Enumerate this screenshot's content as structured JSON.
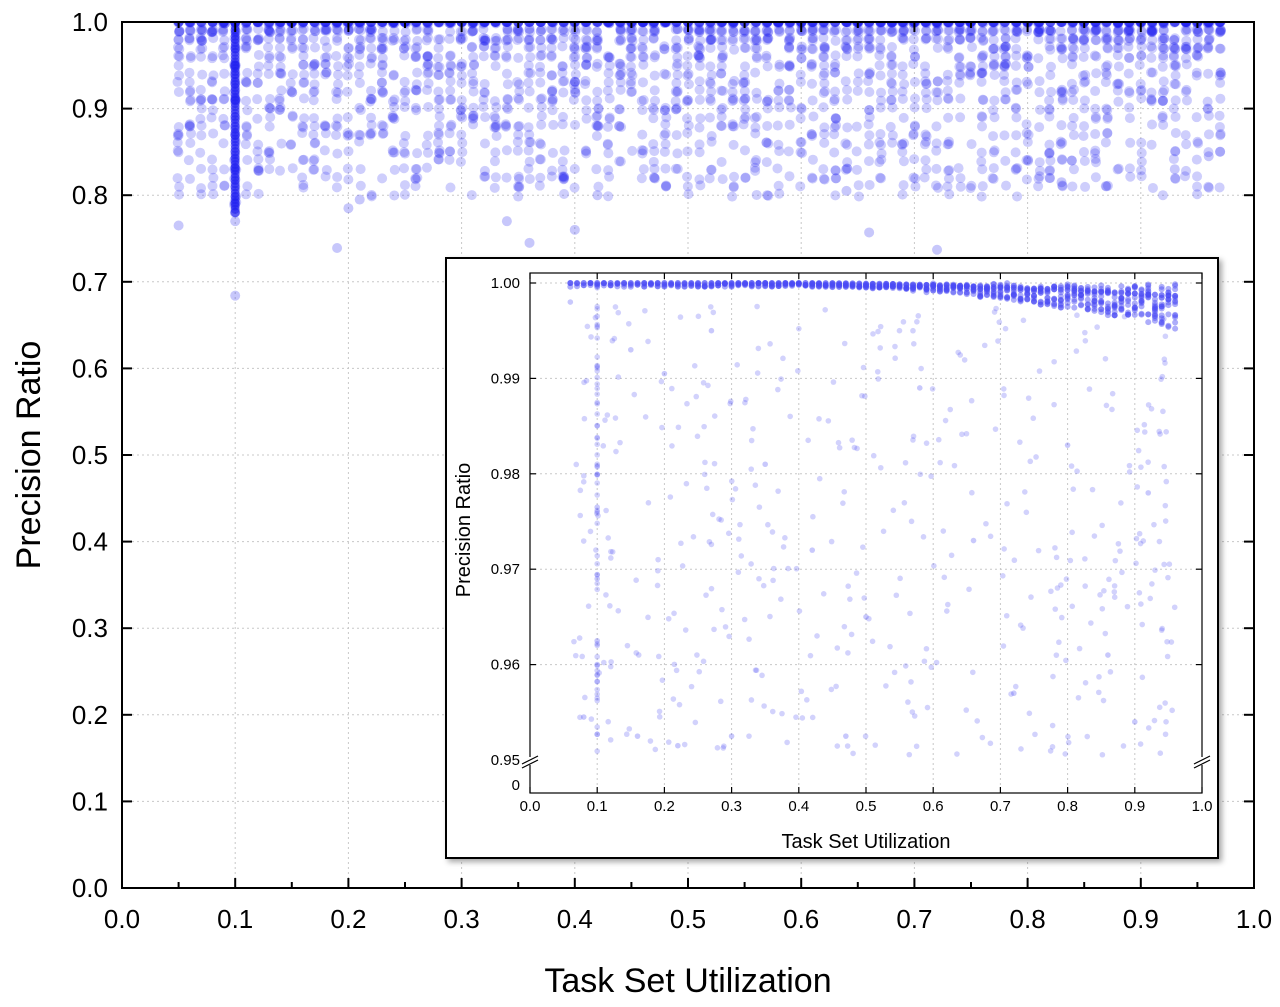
{
  "chart_data": [
    {
      "type": "scatter",
      "xlabel": "Task Set Utilization",
      "ylabel": "Precision Ratio",
      "xlim": [
        0.0,
        1.0
      ],
      "ylim": [
        0.0,
        1.0
      ],
      "x_ticks": [
        "0.0",
        "0.1",
        "0.2",
        "0.3",
        "0.4",
        "0.5",
        "0.6",
        "0.7",
        "0.8",
        "0.9",
        "1.0"
      ],
      "y_ticks": [
        "0.0",
        "0.1",
        "0.2",
        "0.3",
        "0.4",
        "0.5",
        "0.6",
        "0.7",
        "0.8",
        "0.9",
        "1.0"
      ],
      "grid": true,
      "marker_color": "#1f1ff0",
      "series": [
        {
          "points": [
            [
              0.05,
              0.765
            ],
            [
              0.1,
              0.684
            ],
            [
              0.19,
              0.739
            ],
            [
              0.2,
              0.785
            ],
            [
              0.21,
              0.795
            ],
            [
              0.34,
              0.77
            ],
            [
              0.36,
              0.745
            ],
            [
              0.4,
              0.76
            ],
            [
              0.42,
              0.8
            ],
            [
              0.57,
              0.8
            ],
            [
              0.64,
              0.805
            ],
            [
              0.66,
              0.757
            ],
            [
              0.72,
              0.737
            ],
            [
              0.83,
              0.815
            ],
            [
              0.93,
              0.83
            ],
            [
              0.96,
              0.845
            ],
            [
              0.1,
              0.77
            ],
            [
              0.1,
              0.78
            ],
            [
              0.1,
              0.79
            ],
            [
              0.1,
              0.81
            ],
            [
              0.1,
              0.83
            ],
            [
              0.1,
              0.85
            ],
            [
              0.1,
              0.87
            ],
            [
              0.1,
              0.89
            ],
            [
              0.1,
              0.91
            ],
            [
              0.1,
              0.93
            ],
            [
              0.1,
              0.95
            ],
            [
              0.1,
              0.97
            ],
            [
              0.1,
              0.99
            ],
            [
              0.1,
              1.0
            ]
          ]
        }
      ],
      "top_band": {
        "y": 1.0,
        "x_range": [
          0.05,
          0.98
        ],
        "description_density": "dense"
      },
      "scatter_region": {
        "x_range": [
          0.05,
          0.98
        ],
        "y_range": [
          0.8,
          1.0
        ],
        "density": "high near 1.0"
      }
    },
    {
      "type": "scatter",
      "xlabel": "Task Set Utilization",
      "ylabel": "Precision Ratio",
      "xlim": [
        0.0,
        1.0
      ],
      "ylim": [
        0.95,
        1.0
      ],
      "axis_break": true,
      "x_ticks": [
        "0.0",
        "0.1",
        "0.2",
        "0.3",
        "0.4",
        "0.5",
        "0.6",
        "0.7",
        "0.8",
        "0.9",
        "1.0"
      ],
      "y_ticks": [
        "0.95",
        "0.96",
        "0.97",
        "0.98",
        "0.99",
        "1.00"
      ],
      "y_break_label": "0",
      "grid": true,
      "marker_color": "#4a4af5",
      "series": [
        {
          "points": [
            [
              0.06,
              0.998
            ],
            [
              0.1,
              0.9995
            ],
            [
              0.15,
              0.993
            ],
            [
              0.2,
              0.9905
            ],
            [
              0.27,
              0.995
            ],
            [
              0.35,
              0.981
            ],
            [
              0.42,
              0.972
            ],
            [
              0.5,
              0.965
            ],
            [
              0.58,
              0.989
            ],
            [
              0.66,
              0.973
            ],
            [
              0.72,
              0.957
            ],
            [
              0.8,
              0.983
            ],
            [
              0.86,
              0.961
            ],
            [
              0.9,
              0.954
            ],
            [
              0.92,
              0.978
            ],
            [
              0.94,
              0.9975
            ],
            [
              0.1,
              0.9765
            ],
            [
              0.1,
              0.969
            ],
            [
              0.1,
              0.9625
            ],
            [
              0.1,
              0.96
            ],
            [
              0.08,
              0.9545
            ],
            [
              0.16,
              0.9525
            ],
            [
              0.22,
              0.9515
            ],
            [
              0.3,
              0.9525
            ],
            [
              0.47,
              0.9525
            ]
          ]
        }
      ],
      "top_band": {
        "y_start": 1.0,
        "y_end": 0.996,
        "x_range": [
          0.06,
          0.96
        ],
        "trend": "decreasing with utilization"
      }
    }
  ]
}
